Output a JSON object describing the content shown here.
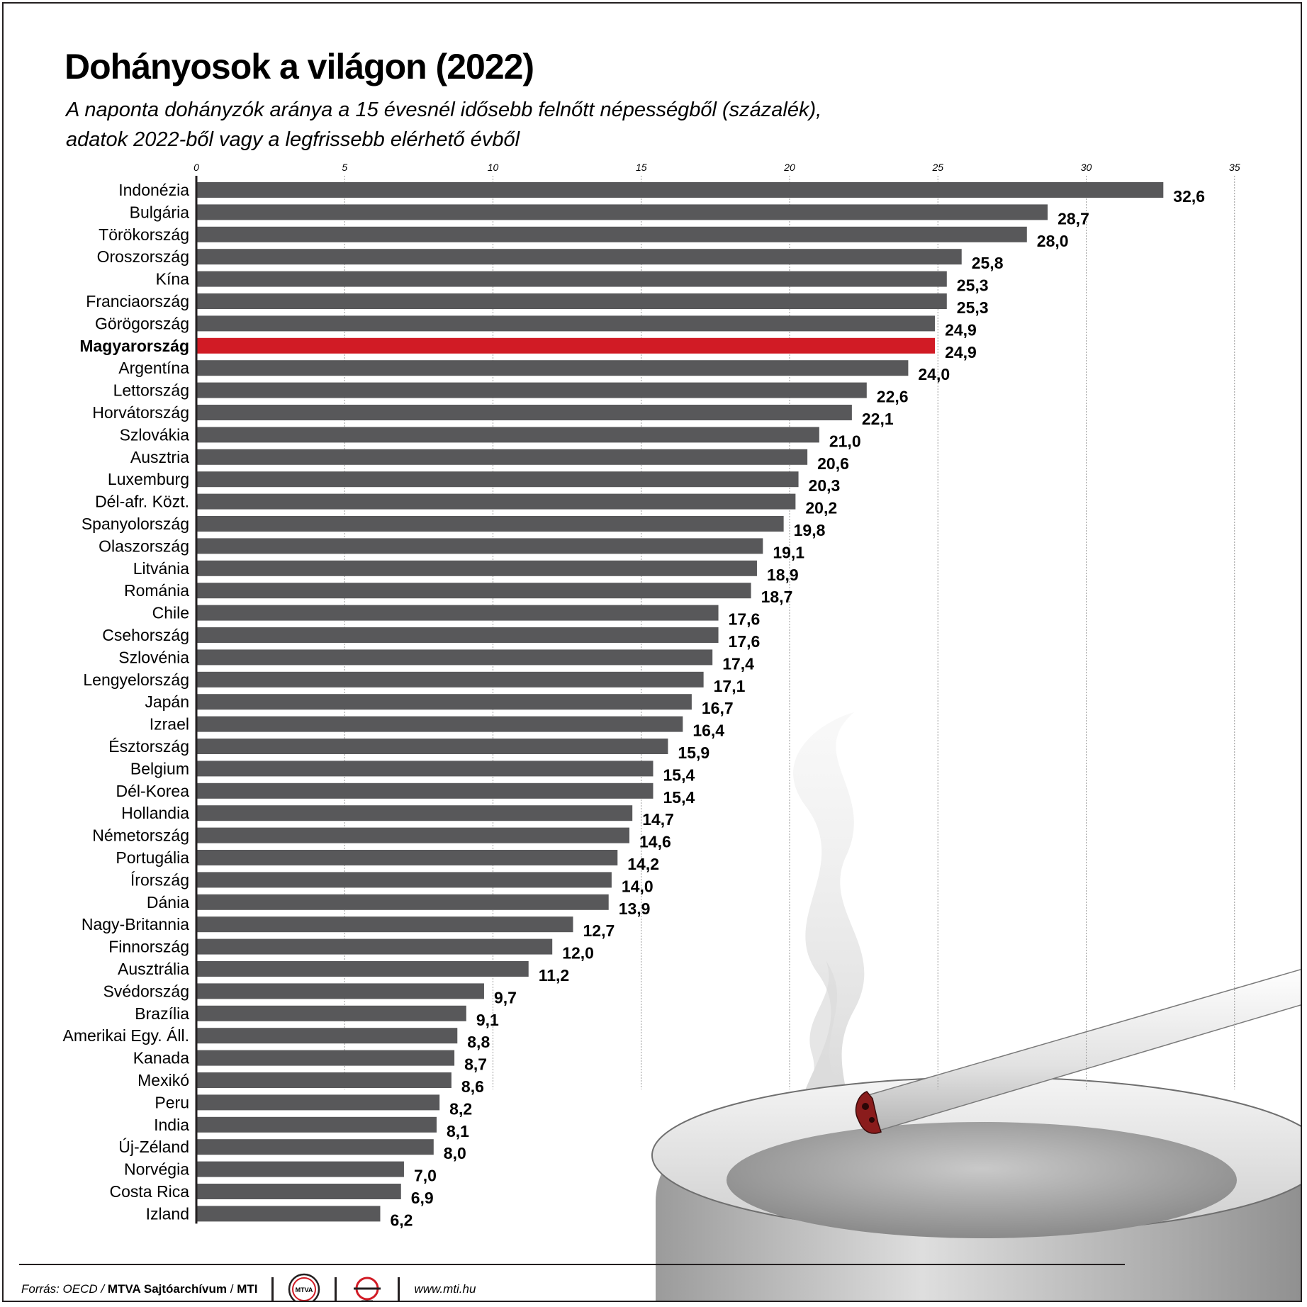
{
  "title": "Dohányosok a világon (2022)",
  "subtitle_lines": [
    "A naponta dohányzók aránya a 15 évesnél idősebb felnőtt népességből (százalék),",
    "adatok 2022-ből vagy a legfrissebb elérhető évből"
  ],
  "chart_data": {
    "type": "bar",
    "orientation": "horizontal",
    "title": "Dohányosok a világon (2022)",
    "xlim": [
      0,
      35
    ],
    "x_ticks": [
      0,
      5,
      10,
      15,
      20,
      25,
      30,
      35
    ],
    "grid": true,
    "categories": [
      "Indonézia",
      "Bulgária",
      "Törökország",
      "Oroszország",
      "Kína",
      "Franciaország",
      "Görögország",
      "Magyarország",
      "Argentína",
      "Lettország",
      "Horvátország",
      "Szlovákia",
      "Ausztria",
      "Luxemburg",
      "Dél-afr. Közt.",
      "Spanyolország",
      "Olaszország",
      "Litvánia",
      "Románia",
      "Chile",
      "Csehország",
      "Szlovénia",
      "Lengyelország",
      "Japán",
      "Izrael",
      "Észtország",
      "Belgium",
      "Dél-Korea",
      "Hollandia",
      "Németország",
      "Portugália",
      "Írország",
      "Dánia",
      "Nagy-Britannia",
      "Finnország",
      "Ausztrália",
      "Svédország",
      "Brazília",
      "Amerikai Egy. Áll.",
      "Kanada",
      "Mexikó",
      "Peru",
      "India",
      "Új-Zéland",
      "Norvégia",
      "Costa Rica",
      "Izland"
    ],
    "values": [
      32.6,
      28.7,
      28.0,
      25.8,
      25.3,
      25.3,
      24.9,
      24.9,
      24.0,
      22.6,
      22.1,
      21.0,
      20.6,
      20.3,
      20.2,
      19.8,
      19.1,
      18.9,
      18.7,
      17.6,
      17.6,
      17.4,
      17.1,
      16.7,
      16.4,
      15.9,
      15.4,
      15.4,
      14.7,
      14.6,
      14.2,
      14.0,
      13.9,
      12.7,
      12.0,
      11.2,
      9.7,
      9.1,
      8.8,
      8.7,
      8.6,
      8.2,
      8.1,
      8.0,
      7.0,
      6.9,
      6.2
    ],
    "value_labels": [
      "32,6",
      "28,7",
      "28,0",
      "25,8",
      "25,3",
      "25,3",
      "24,9",
      "24,9",
      "24,0",
      "22,6",
      "22,1",
      "21,0",
      "20,6",
      "20,3",
      "20,2",
      "19,8",
      "19,1",
      "18,9",
      "18,7",
      "17,6",
      "17,6",
      "17,4",
      "17,1",
      "16,7",
      "16,4",
      "15,9",
      "15,4",
      "15,4",
      "14,7",
      "14,6",
      "14,2",
      "14,0",
      "13,9",
      "12,7",
      "12,0",
      "11,2",
      "9,7",
      "9,1",
      "8,8",
      "8,7",
      "8,6",
      "8,2",
      "8,1",
      "8,0",
      "7,0",
      "6,9",
      "6,2"
    ],
    "highlight": "Magyarország",
    "colors": {
      "bar": "#58585a",
      "highlight": "#d11b25",
      "grid": "#9a9a9a"
    }
  },
  "footer": {
    "source_prefix": "Forrás: OECD /",
    "source_bold": "MTVA Sajtóarchívum",
    "source_slash": "/",
    "source_mti": "MTI",
    "logo_mtva_text": "MTVA",
    "url": "www.mti.hu"
  },
  "colors": {
    "text": "#231f20",
    "logo_red": "#d11b25"
  }
}
